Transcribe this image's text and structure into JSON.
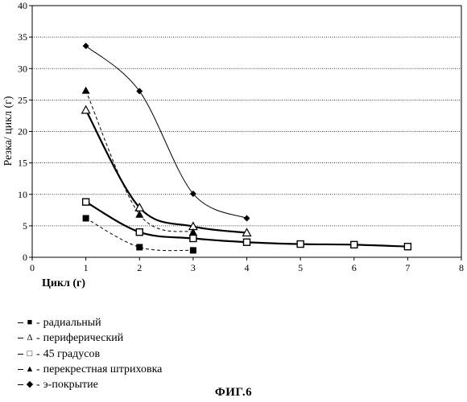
{
  "chart_data": {
    "type": "line",
    "title": "",
    "xlabel": "Цикл (г)",
    "ylabel": "Резка/ цикл (г)",
    "xlim": [
      0,
      8
    ],
    "ylim": [
      0,
      40
    ],
    "xticks": [
      0,
      1,
      2,
      3,
      4,
      5,
      6,
      7,
      8
    ],
    "yticks": [
      0,
      5,
      10,
      15,
      20,
      25,
      30,
      35,
      40
    ],
    "grid": "horizontal",
    "legend_position": "bottom-left",
    "series": [
      {
        "name": "радиальный",
        "marker": "filled-square",
        "line": "dashed-thin",
        "x": [
          1,
          2,
          3
        ],
        "y": [
          6.2,
          1.6,
          1.1
        ]
      },
      {
        "name": "периферический",
        "marker": "open-triangle",
        "line": "solid-bold",
        "x": [
          1,
          2,
          3,
          4
        ],
        "y": [
          23.4,
          7.9,
          4.9,
          3.9
        ]
      },
      {
        "name": "45 градусов",
        "marker": "open-square",
        "line": "solid-bold",
        "x": [
          1,
          2,
          3,
          4,
          5,
          6,
          7
        ],
        "y": [
          8.8,
          4.0,
          3.0,
          2.4,
          2.1,
          2.0,
          1.7
        ]
      },
      {
        "name": "перекрестная штриховка",
        "marker": "filled-triangle",
        "line": "dashed-thin",
        "x": [
          1,
          2,
          3
        ],
        "y": [
          26.5,
          6.8,
          4.0
        ]
      },
      {
        "name": "э-покрытие",
        "marker": "filled-diamond",
        "line": "solid-thin",
        "x": [
          1,
          2,
          3,
          4
        ],
        "y": [
          33.6,
          26.4,
          10.1,
          6.2
        ]
      }
    ]
  },
  "legend": {
    "symbols": [
      "■",
      "Δ",
      "□",
      "▲",
      "◆"
    ]
  },
  "figure_caption": "ФИГ.6"
}
